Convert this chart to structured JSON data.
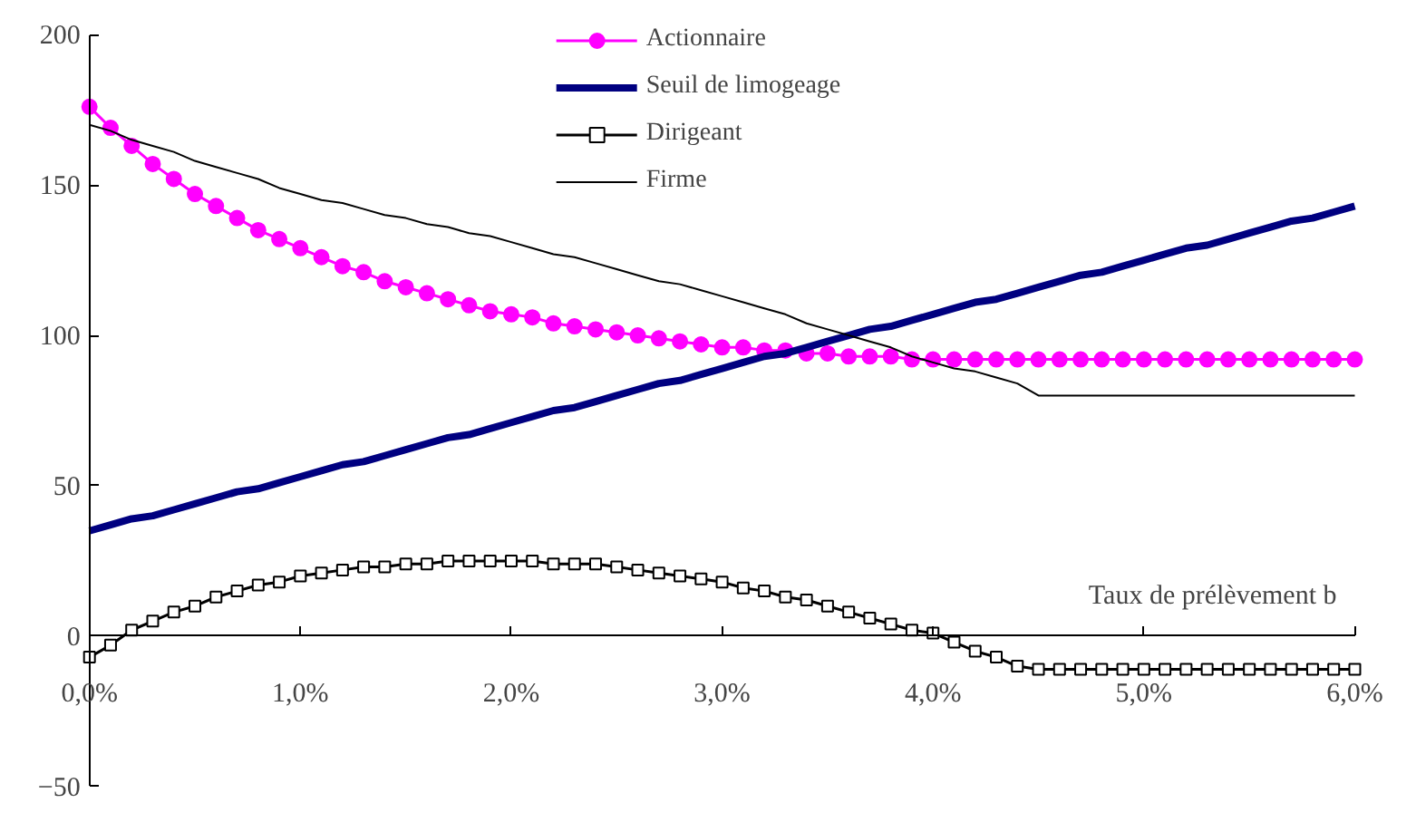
{
  "chart_data": {
    "type": "line",
    "xlabel": "Taux de prélèvement b",
    "x": [
      0,
      0.1,
      0.2,
      0.3,
      0.4,
      0.5,
      0.6,
      0.7,
      0.8,
      0.9,
      1.0,
      1.1,
      1.2,
      1.3,
      1.4,
      1.5,
      1.6,
      1.7,
      1.8,
      1.9,
      2.0,
      2.1,
      2.2,
      2.3,
      2.4,
      2.5,
      2.6,
      2.7,
      2.8,
      2.9,
      3.0,
      3.1,
      3.2,
      3.3,
      3.4,
      3.5,
      3.6,
      3.7,
      3.8,
      3.9,
      4.0,
      4.1,
      4.2,
      4.3,
      4.4,
      4.5,
      4.6,
      4.7,
      4.8,
      4.9,
      5.0,
      5.1,
      5.2,
      5.3,
      5.4,
      5.5,
      5.6,
      5.7,
      5.8,
      5.9,
      6.0
    ],
    "series": [
      {
        "name": "Actionnaire",
        "color": "#ff00ff",
        "marker": "circle",
        "values": [
          176,
          169,
          163,
          157,
          152,
          147,
          143,
          139,
          135,
          132,
          129,
          126,
          123,
          121,
          118,
          116,
          114,
          112,
          110,
          108,
          107,
          106,
          104,
          103,
          102,
          101,
          100,
          99,
          98,
          97,
          96,
          96,
          95,
          95,
          94,
          94,
          93,
          93,
          93,
          92,
          92,
          92,
          92,
          92,
          92,
          92,
          92,
          92,
          92,
          92,
          92,
          92,
          92,
          92,
          92,
          92,
          92,
          92,
          92,
          92,
          92
        ]
      },
      {
        "name": "Seuil de limogeage",
        "color": "#000080",
        "marker": "none",
        "values": [
          35,
          37,
          39,
          40,
          42,
          44,
          46,
          48,
          49,
          51,
          53,
          55,
          57,
          58,
          60,
          62,
          64,
          66,
          67,
          69,
          71,
          73,
          75,
          76,
          78,
          80,
          82,
          84,
          85,
          87,
          89,
          91,
          93,
          94,
          96,
          98,
          100,
          102,
          103,
          105,
          107,
          109,
          111,
          112,
          114,
          116,
          118,
          120,
          121,
          123,
          125,
          127,
          129,
          130,
          132,
          134,
          136,
          138,
          139,
          141,
          143
        ]
      },
      {
        "name": "Dirigeant",
        "color": "#000000",
        "marker": "square",
        "values": [
          -7,
          -3,
          2,
          5,
          8,
          10,
          13,
          15,
          17,
          18,
          20,
          21,
          22,
          23,
          23,
          24,
          24,
          25,
          25,
          25,
          25,
          25,
          24,
          24,
          24,
          23,
          22,
          21,
          20,
          19,
          18,
          16,
          15,
          13,
          12,
          10,
          8,
          6,
          4,
          2,
          1,
          -2,
          -5,
          -7,
          -10,
          -11,
          -11,
          -11,
          -11,
          -11,
          -11,
          -11,
          -11,
          -11,
          -11,
          -11,
          -11,
          -11,
          -11,
          -11,
          -11
        ]
      },
      {
        "name": "Firme",
        "color": "#000000",
        "marker": "none",
        "values": [
          170,
          168,
          165,
          163,
          161,
          158,
          156,
          154,
          152,
          149,
          147,
          145,
          144,
          142,
          140,
          139,
          137,
          136,
          134,
          133,
          131,
          129,
          127,
          126,
          124,
          122,
          120,
          118,
          117,
          115,
          113,
          111,
          109,
          107,
          104,
          102,
          100,
          98,
          96,
          93,
          91,
          89,
          88,
          86,
          84,
          80,
          80,
          80,
          80,
          80,
          80,
          80,
          80,
          80,
          80,
          80,
          80,
          80,
          80,
          80,
          80
        ]
      }
    ],
    "xlim": [
      0,
      6.0
    ],
    "ylim": [
      -50,
      200
    ],
    "xticks": [
      {
        "value": 0,
        "label": "0,0%"
      },
      {
        "value": 1,
        "label": "1,0%"
      },
      {
        "value": 2,
        "label": "2,0%"
      },
      {
        "value": 3,
        "label": "3,0%"
      },
      {
        "value": 4,
        "label": "4,0%"
      },
      {
        "value": 5,
        "label": "5,0%"
      },
      {
        "value": 6,
        "label": "6,0%"
      }
    ],
    "yticks": [
      -50,
      0,
      50,
      100,
      150,
      200
    ],
    "legend": "top",
    "grid": false
  }
}
